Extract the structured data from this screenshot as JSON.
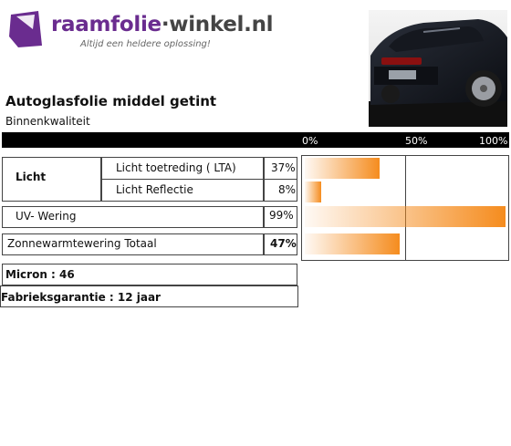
{
  "logo": {
    "brand_part1": "raamfolie",
    "brand_dot": "·",
    "brand_part2": "winkel.nl",
    "tagline": "Altijd een heldere oplossing!"
  },
  "product": {
    "title": "Autoglasfolie middel getint",
    "subtitle": "Binnenkwaliteit"
  },
  "scale": {
    "ticks": [
      "0%",
      "50%",
      "100%"
    ]
  },
  "specs": {
    "licht_label": "Licht",
    "rows": [
      {
        "label": "Licht toetreding ( LTA)",
        "value": "37%",
        "percent": 37
      },
      {
        "label": "Licht Reflectie",
        "value": "8%",
        "percent": 8
      },
      {
        "label": "UV- Wering",
        "value": "99%",
        "percent": 99
      },
      {
        "label": "Zonnewarmtewering Totaal",
        "value": "47%",
        "percent": 47
      }
    ]
  },
  "micron": "Micron : 46",
  "garantie": "Fabrieksgarantie : 12 jaar",
  "colors": {
    "brand_purple": "#6a2c8f",
    "bar_orange": "#f58c1e",
    "scale_bg": "#000000"
  }
}
